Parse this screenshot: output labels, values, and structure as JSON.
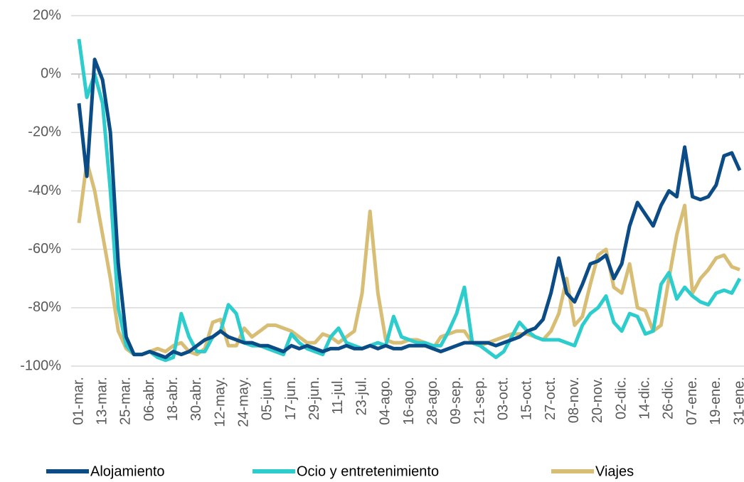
{
  "chart_data": {
    "type": "line",
    "categories": [
      "01-mar.",
      null,
      null,
      "13-mar.",
      null,
      null,
      "25-mar.",
      null,
      null,
      "06-abr.",
      null,
      null,
      "18-abr.",
      null,
      null,
      "30-abr.",
      null,
      null,
      "12-may.",
      null,
      null,
      "24-may.",
      null,
      null,
      "05-jun.",
      null,
      null,
      "17-jun.",
      null,
      null,
      "29-jun.",
      null,
      null,
      "11-jul.",
      null,
      null,
      "23-jul.",
      null,
      null,
      "04-ago.",
      null,
      null,
      "16-ago.",
      null,
      null,
      "28-ago.",
      null,
      null,
      "09-sep.",
      null,
      null,
      "21-sep.",
      null,
      null,
      "03-oct.",
      null,
      null,
      "15-oct.",
      null,
      null,
      "27-oct.",
      null,
      null,
      "08-nov.",
      null,
      null,
      "20-nov.",
      null,
      null,
      "02-dic.",
      null,
      null,
      "14-dic.",
      null,
      null,
      "26-dic.",
      null,
      null,
      "07-ene.",
      null,
      null,
      "19-ene.",
      null,
      null,
      "31-ene."
    ],
    "series": [
      {
        "name": "Alojamiento",
        "color": "#0b4c86",
        "values": [
          -10,
          -35,
          5,
          -2,
          -20,
          -65,
          -90,
          -96,
          -96,
          -95,
          -96,
          -97,
          -95,
          -96,
          -95,
          -93,
          -91,
          -90,
          -88,
          -90,
          -91,
          -92,
          -92,
          -93,
          -93,
          -94,
          -95,
          -93,
          -94,
          -93,
          -94,
          -95,
          -94,
          -94,
          -93,
          -94,
          -94,
          -93,
          -94,
          -93,
          -94,
          -94,
          -93,
          -93,
          -93,
          -94,
          -95,
          -94,
          -93,
          -92,
          -92,
          -92,
          -92,
          -93,
          -92,
          -91,
          -90,
          -88,
          -87,
          -84,
          -75,
          -63,
          -75,
          -78,
          -72,
          -65,
          -64,
          -62,
          -70,
          -65,
          -52,
          -44,
          -48,
          -52,
          -45,
          -40,
          -42,
          -25,
          -42,
          -43,
          -42,
          -38,
          -28,
          -27,
          -33
        ]
      },
      {
        "name": "Ocio y entretenimiento",
        "color": "#2dcccd",
        "values": [
          12,
          -8,
          0,
          -10,
          -40,
          -80,
          -93,
          -96,
          -96,
          -95,
          -97,
          -98,
          -97,
          -82,
          -90,
          -95,
          -95,
          -90,
          -88,
          -79,
          -82,
          -92,
          -93,
          -93,
          -94,
          -95,
          -96,
          -89,
          -92,
          -94,
          -95,
          -96,
          -90,
          -87,
          -92,
          -93,
          -94,
          -93,
          -92,
          -93,
          -83,
          -90,
          -91,
          -92,
          -92,
          -93,
          -93,
          -88,
          -82,
          -73,
          -92,
          -93,
          -95,
          -97,
          -95,
          -90,
          -85,
          -88,
          -90,
          -91,
          -91,
          -91,
          -92,
          -93,
          -86,
          -82,
          -80,
          -76,
          -85,
          -88,
          -82,
          -83,
          -89,
          -88,
          -72,
          -68,
          -77,
          -73,
          -76,
          -78,
          -79,
          -75,
          -74,
          -75,
          -70
        ]
      },
      {
        "name": "Viajes",
        "color": "#d8be75",
        "values": [
          -51,
          -30,
          -40,
          -55,
          -70,
          -88,
          -94,
          -96,
          -96,
          -95,
          -94,
          -95,
          -93,
          -92,
          -95,
          -96,
          -94,
          -85,
          -84,
          -93,
          -93,
          -87,
          -90,
          -88,
          -86,
          -86,
          -87,
          -88,
          -90,
          -92,
          -92,
          -89,
          -90,
          -92,
          -90,
          -88,
          -75,
          -47,
          -75,
          -91,
          -92,
          -92,
          -91,
          -91,
          -92,
          -94,
          -90,
          -89,
          -88,
          -88,
          -92,
          -93,
          -92,
          -91,
          -90,
          -89,
          -89,
          -89,
          -90,
          -91,
          -88,
          -82,
          -70,
          -86,
          -83,
          -72,
          -62,
          -60,
          -73,
          -75,
          -65,
          -80,
          -81,
          -88,
          -86,
          -70,
          -55,
          -45,
          -75,
          -70,
          -67,
          -63,
          -62,
          -66,
          -67
        ]
      }
    ],
    "ylim": [
      -100,
      20
    ],
    "yticks": [
      {
        "value": -100,
        "label": "-100%"
      },
      {
        "value": -80,
        "label": "-80%"
      },
      {
        "value": -60,
        "label": "-60%"
      },
      {
        "value": -40,
        "label": "-40%"
      },
      {
        "value": -20,
        "label": "-20%"
      },
      {
        "value": 0,
        "label": "0%"
      },
      {
        "value": 20,
        "label": "20%"
      }
    ],
    "grid": true
  }
}
